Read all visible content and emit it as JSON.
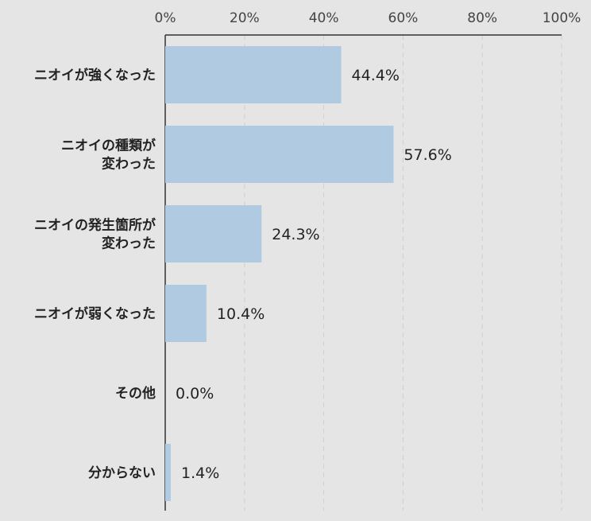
{
  "chart_data": {
    "type": "bar",
    "orientation": "horizontal",
    "title": "",
    "xlabel": "",
    "ylabel": "",
    "categories": [
      [
        "ニオイが強くなった"
      ],
      [
        "ニオイの種類が",
        "変わった"
      ],
      [
        "ニオイの発生箇所が",
        "変わった"
      ],
      [
        "ニオイが弱くなった"
      ],
      [
        "その他"
      ],
      [
        "分からない"
      ]
    ],
    "values": [
      44.4,
      57.6,
      24.3,
      10.4,
      0.0,
      1.4
    ],
    "value_labels": [
      "44.4%",
      "57.6%",
      "24.3%",
      "10.4%",
      "0.0%",
      "1.4%"
    ],
    "xlim": [
      0,
      100
    ],
    "ticks": [
      0,
      20,
      40,
      60,
      80,
      100
    ],
    "tick_labels": [
      "0%",
      "20%",
      "40%",
      "60%",
      "80%",
      "100%"
    ],
    "grid": true,
    "legend": "none",
    "colors": {
      "bar": "#b0cbe1",
      "background": "#e5e5e5",
      "text": "#222222",
      "axis": "#333333",
      "grid": "#cfcfcf"
    }
  }
}
